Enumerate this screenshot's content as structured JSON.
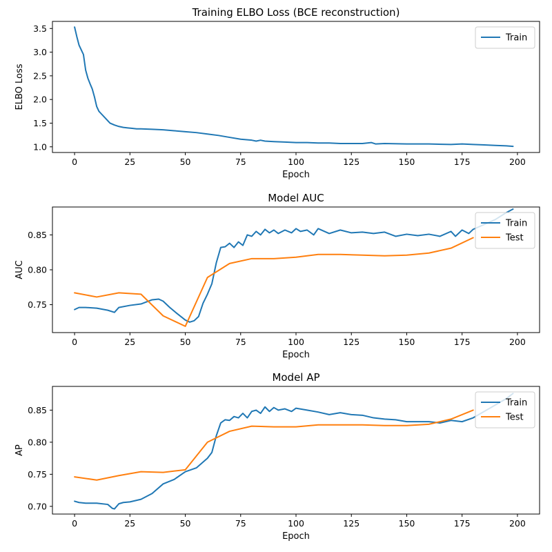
{
  "chart_data": [
    {
      "type": "line",
      "title": "Training ELBO Loss (BCE reconstruction)",
      "xlabel": "Epoch",
      "ylabel": "ELBO Loss",
      "xlim": [
        -10,
        210
      ],
      "ylim": [
        0.88,
        3.65
      ],
      "xticks": [
        0,
        25,
        50,
        75,
        100,
        125,
        150,
        175,
        200
      ],
      "yticks": [
        1.0,
        1.5,
        2.0,
        2.5,
        3.0,
        3.5
      ],
      "ytick_decimals": 1,
      "legend": "top-right",
      "series": [
        {
          "name": "Train",
          "color": "#1f77b4",
          "x": [
            0,
            1,
            2,
            3,
            4,
            5,
            6,
            7,
            8,
            9,
            10,
            11,
            12,
            14,
            16,
            18,
            20,
            22,
            24,
            26,
            28,
            30,
            35,
            40,
            45,
            50,
            55,
            60,
            65,
            70,
            75,
            80,
            82,
            84,
            86,
            90,
            95,
            100,
            105,
            110,
            115,
            120,
            125,
            130,
            134,
            136,
            140,
            150,
            160,
            170,
            175,
            180,
            185,
            190,
            195,
            198
          ],
          "values": [
            3.53,
            3.33,
            3.15,
            3.05,
            2.95,
            2.62,
            2.45,
            2.33,
            2.22,
            2.05,
            1.85,
            1.75,
            1.7,
            1.6,
            1.5,
            1.46,
            1.43,
            1.41,
            1.4,
            1.39,
            1.38,
            1.38,
            1.37,
            1.36,
            1.34,
            1.32,
            1.3,
            1.27,
            1.24,
            1.2,
            1.16,
            1.14,
            1.12,
            1.14,
            1.12,
            1.11,
            1.1,
            1.09,
            1.09,
            1.08,
            1.08,
            1.07,
            1.07,
            1.07,
            1.09,
            1.06,
            1.07,
            1.06,
            1.06,
            1.05,
            1.06,
            1.05,
            1.04,
            1.03,
            1.02,
            1.01
          ]
        }
      ]
    },
    {
      "type": "line",
      "title": "Model AUC",
      "xlabel": "Epoch",
      "ylabel": "AUC",
      "xlim": [
        -10,
        210
      ],
      "ylim": [
        0.71,
        0.89
      ],
      "xticks": [
        0,
        25,
        50,
        75,
        100,
        125,
        150,
        175,
        200
      ],
      "yticks": [
        0.75,
        0.8,
        0.85
      ],
      "ytick_decimals": 2,
      "legend": "top-right",
      "series": [
        {
          "name": "Train",
          "color": "#1f77b4",
          "x": [
            0,
            2,
            5,
            10,
            15,
            18,
            20,
            25,
            30,
            35,
            38,
            40,
            43,
            46,
            50,
            52,
            54,
            56,
            58,
            60,
            62,
            64,
            66,
            68,
            70,
            72,
            74,
            76,
            78,
            80,
            82,
            84,
            86,
            88,
            90,
            92,
            95,
            98,
            100,
            102,
            105,
            108,
            110,
            115,
            120,
            125,
            130,
            135,
            140,
            145,
            150,
            155,
            160,
            165,
            170,
            172,
            175,
            178,
            180,
            185,
            190,
            195,
            198
          ],
          "values": [
            0.743,
            0.746,
            0.746,
            0.745,
            0.742,
            0.739,
            0.746,
            0.749,
            0.751,
            0.757,
            0.758,
            0.755,
            0.746,
            0.738,
            0.728,
            0.725,
            0.727,
            0.733,
            0.752,
            0.765,
            0.78,
            0.81,
            0.832,
            0.833,
            0.838,
            0.832,
            0.84,
            0.835,
            0.85,
            0.848,
            0.855,
            0.85,
            0.858,
            0.853,
            0.857,
            0.852,
            0.857,
            0.853,
            0.859,
            0.855,
            0.857,
            0.85,
            0.859,
            0.852,
            0.857,
            0.853,
            0.854,
            0.852,
            0.854,
            0.848,
            0.851,
            0.849,
            0.851,
            0.848,
            0.855,
            0.848,
            0.857,
            0.852,
            0.858,
            0.865,
            0.872,
            0.882,
            0.887
          ]
        },
        {
          "name": "Test",
          "color": "#ff7f0e",
          "x": [
            0,
            10,
            20,
            30,
            40,
            50,
            60,
            70,
            80,
            90,
            100,
            110,
            120,
            130,
            140,
            150,
            160,
            170,
            180
          ],
          "values": [
            0.767,
            0.761,
            0.767,
            0.765,
            0.734,
            0.719,
            0.789,
            0.809,
            0.816,
            0.816,
            0.818,
            0.822,
            0.822,
            0.821,
            0.82,
            0.821,
            0.824,
            0.831,
            0.846
          ]
        }
      ]
    },
    {
      "type": "line",
      "title": "Model AP",
      "xlabel": "Epoch",
      "ylabel": "AP",
      "xlim": [
        -10,
        210
      ],
      "ylim": [
        0.688,
        0.887
      ],
      "xticks": [
        0,
        25,
        50,
        75,
        100,
        125,
        150,
        175,
        200
      ],
      "yticks": [
        0.7,
        0.75,
        0.8,
        0.85
      ],
      "ytick_decimals": 2,
      "legend": "top-right",
      "series": [
        {
          "name": "Train",
          "color": "#1f77b4",
          "x": [
            0,
            2,
            5,
            10,
            15,
            17,
            18,
            20,
            22,
            25,
            30,
            35,
            40,
            45,
            50,
            55,
            60,
            62,
            64,
            66,
            68,
            70,
            72,
            74,
            76,
            78,
            80,
            82,
            84,
            86,
            88,
            90,
            92,
            95,
            98,
            100,
            105,
            110,
            115,
            120,
            125,
            130,
            135,
            140,
            145,
            150,
            155,
            160,
            165,
            170,
            175,
            180,
            185,
            190,
            195,
            198
          ],
          "values": [
            0.708,
            0.706,
            0.705,
            0.705,
            0.703,
            0.697,
            0.696,
            0.704,
            0.706,
            0.707,
            0.711,
            0.72,
            0.735,
            0.742,
            0.754,
            0.76,
            0.775,
            0.784,
            0.81,
            0.83,
            0.835,
            0.834,
            0.84,
            0.838,
            0.845,
            0.838,
            0.848,
            0.85,
            0.845,
            0.855,
            0.848,
            0.854,
            0.85,
            0.852,
            0.848,
            0.853,
            0.85,
            0.847,
            0.843,
            0.846,
            0.843,
            0.842,
            0.838,
            0.836,
            0.835,
            0.832,
            0.832,
            0.832,
            0.83,
            0.834,
            0.832,
            0.838,
            0.848,
            0.858,
            0.868,
            0.876
          ]
        },
        {
          "name": "Test",
          "color": "#ff7f0e",
          "x": [
            0,
            10,
            20,
            30,
            40,
            50,
            60,
            70,
            80,
            90,
            100,
            110,
            120,
            130,
            140,
            150,
            160,
            170,
            180
          ],
          "values": [
            0.746,
            0.741,
            0.748,
            0.754,
            0.753,
            0.757,
            0.8,
            0.817,
            0.825,
            0.824,
            0.824,
            0.827,
            0.827,
            0.827,
            0.826,
            0.826,
            0.828,
            0.836,
            0.85
          ]
        }
      ]
    }
  ]
}
